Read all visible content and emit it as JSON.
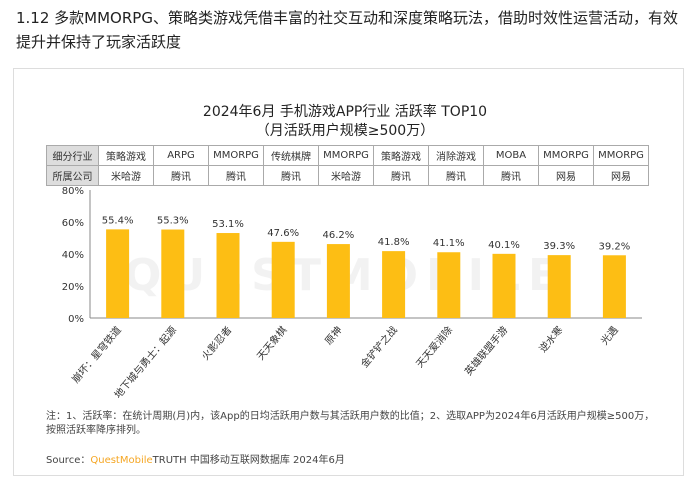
{
  "heading": "1.12 多款MMORPG、策略类游戏凭借丰富的社交互动和深度策略玩法，借助时效性运营活动，有效提升并保持了玩家活跃度",
  "chart_data": {
    "type": "bar",
    "title": "2024年6月 手机游戏APP行业 活跃率 TOP10",
    "subtitle": "（月活跃用户规模≥500万）",
    "categories": [
      "崩坏：星穹铁道",
      "地下城与勇士：起源",
      "火影忍者",
      "天天象棋",
      "原神",
      "金铲铲之战",
      "天天爱消除",
      "英雄联盟手游",
      "逆水寒",
      "光遇"
    ],
    "values": [
      55.4,
      55.3,
      53.1,
      47.6,
      46.2,
      41.8,
      41.1,
      40.1,
      39.3,
      39.2
    ],
    "data_labels": [
      "55.4%",
      "55.3%",
      "53.1%",
      "47.6%",
      "46.2%",
      "41.8%",
      "41.1%",
      "40.1%",
      "39.3%",
      "39.2%"
    ],
    "yticks": [
      "0%",
      "20%",
      "40%",
      "60%",
      "80%"
    ],
    "ylim": [
      0,
      80
    ],
    "grid": false,
    "bar_color": "#FDBE14"
  },
  "table": {
    "row1_header": "细分行业",
    "row1": [
      "策略游戏",
      "ARPG",
      "MMORPG",
      "传统棋牌",
      "MMORPG",
      "策略游戏",
      "消除游戏",
      "MOBA",
      "MMORPG",
      "MMORPG"
    ],
    "row2_header": "所属公司",
    "row2": [
      "米哈游",
      "腾讯",
      "腾讯",
      "腾讯",
      "米哈游",
      "腾讯",
      "腾讯",
      "腾讯",
      "网易",
      "网易"
    ]
  },
  "note": "注：1、活跃率：在统计周期(月)内，该App的日均活跃用户数与其活跃用户数的比值；2、选取APP为2024年6月活跃用户规模≥500万，按照活跃率降序排列。",
  "source": {
    "prefix": "Source：",
    "brand": "QuestMobile",
    "rest": "TRUTH 中国移动互联网数据库 2024年6月"
  },
  "watermark": "QUESTMOBILE"
}
